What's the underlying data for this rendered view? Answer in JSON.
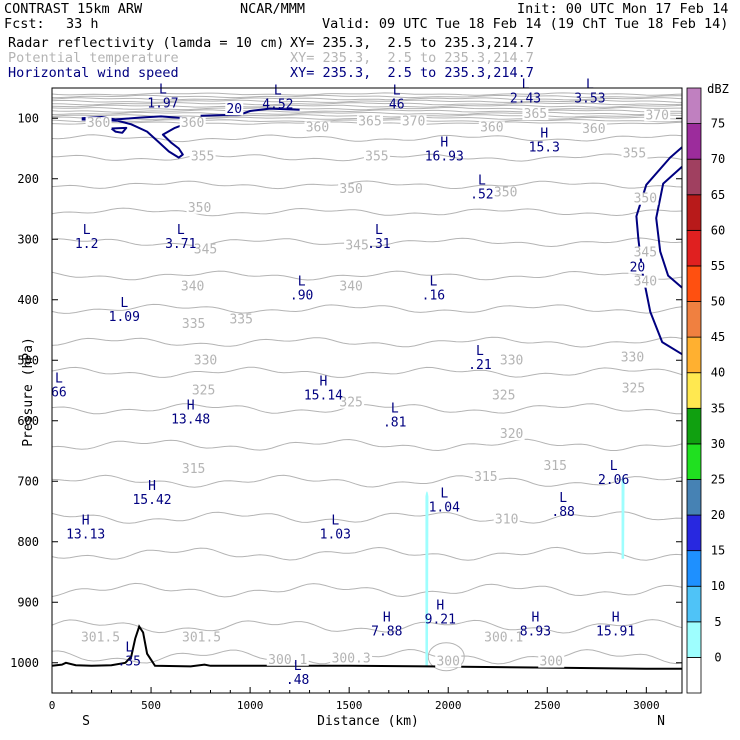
{
  "header": {
    "model": "CONTRAST 15km ARW",
    "center": "NCAR/MMM",
    "init": "Init: 00 UTC Mon 17 Feb 14",
    "fcst_label": "Fcst:",
    "fcst_value": "33 h",
    "valid": "Valid: 09 UTC Tue 18 Feb 14 (19 ChT Tue 18 Feb 14)"
  },
  "fields": [
    {
      "name": "Radar reflectivity (lamda = 10 cm)",
      "xy": "XY= 235.3,  2.5 to 235.3,214.7",
      "color": "#000000"
    },
    {
      "name": "Potential temperature",
      "xy": "XY= 235.3,  2.5 to 235.3,214.7",
      "color": "#b4b4b4"
    },
    {
      "name": "Horizontal wind speed",
      "xy": "XY= 235.3,  2.5 to 235.3,214.7",
      "color": "#000080"
    }
  ],
  "chart_data": {
    "type": "cross-section",
    "xlabel": "Distance (km)",
    "ylabel": "Pressure (hPa)",
    "xlim": [
      0,
      3180
    ],
    "ylim": [
      1050,
      50
    ],
    "x_ticks": [
      0,
      500,
      1000,
      1500,
      2000,
      2500,
      3000
    ],
    "x_tick_labels": [
      "0",
      "500",
      "1000",
      "1500",
      "2000",
      "2500",
      "3000"
    ],
    "y_ticks": [
      100,
      200,
      300,
      400,
      500,
      600,
      700,
      800,
      900,
      1000
    ],
    "y_tick_labels": [
      "100",
      "200",
      "300",
      "400",
      "500",
      "600",
      "700",
      "800",
      "900",
      "1000"
    ],
    "left_end_label": "S",
    "right_end_label": "N",
    "colorbar": {
      "unit": "dBZ",
      "levels": [
        "0",
        "5",
        "10",
        "15",
        "20",
        "25",
        "30",
        "35",
        "40",
        "45",
        "50",
        "55",
        "60",
        "65",
        "70",
        "75"
      ],
      "colors": [
        "#ffffff",
        "#9efefe",
        "#4fc3f7",
        "#1e90ff",
        "#2828e0",
        "#4682b4",
        "#20e020",
        "#10a010",
        "#ffe850",
        "#ffb030",
        "#f08040",
        "#ff5010",
        "#e02020",
        "#b81a1a",
        "#a04060",
        "#9c2c9c",
        "#c080c0"
      ]
    },
    "theta_labels": [
      {
        "x": 235,
        "p": 113,
        "text": "360"
      },
      {
        "x": 710,
        "p": 113,
        "text": "360"
      },
      {
        "x": 1605,
        "p": 110,
        "text": "365"
      },
      {
        "x": 1825,
        "p": 110,
        "text": "370"
      },
      {
        "x": 1340,
        "p": 120,
        "text": "360"
      },
      {
        "x": 2220,
        "p": 120,
        "text": "360"
      },
      {
        "x": 2440,
        "p": 98,
        "text": "365"
      },
      {
        "x": 2735,
        "p": 123,
        "text": "360"
      },
      {
        "x": 3055,
        "p": 100,
        "text": "370"
      },
      {
        "x": 760,
        "p": 168,
        "text": "355"
      },
      {
        "x": 1640,
        "p": 168,
        "text": "355"
      },
      {
        "x": 2940,
        "p": 163,
        "text": "355"
      },
      {
        "x": 1510,
        "p": 222,
        "text": "350"
      },
      {
        "x": 745,
        "p": 253,
        "text": "350"
      },
      {
        "x": 2290,
        "p": 228,
        "text": "350"
      },
      {
        "x": 2995,
        "p": 238,
        "text": "350"
      },
      {
        "x": 775,
        "p": 322,
        "text": "345"
      },
      {
        "x": 1540,
        "p": 315,
        "text": "345"
      },
      {
        "x": 2995,
        "p": 327,
        "text": "345"
      },
      {
        "x": 710,
        "p": 383,
        "text": "340"
      },
      {
        "x": 1510,
        "p": 383,
        "text": "340"
      },
      {
        "x": 2995,
        "p": 375,
        "text": "340"
      },
      {
        "x": 715,
        "p": 445,
        "text": "335"
      },
      {
        "x": 955,
        "p": 438,
        "text": "335"
      },
      {
        "x": 775,
        "p": 505,
        "text": "330"
      },
      {
        "x": 2320,
        "p": 505,
        "text": "330"
      },
      {
        "x": 2930,
        "p": 500,
        "text": "330"
      },
      {
        "x": 765,
        "p": 555,
        "text": "325"
      },
      {
        "x": 1510,
        "p": 575,
        "text": "325"
      },
      {
        "x": 2280,
        "p": 563,
        "text": "325"
      },
      {
        "x": 2935,
        "p": 552,
        "text": "325"
      },
      {
        "x": 2320,
        "p": 627,
        "text": "320"
      },
      {
        "x": 715,
        "p": 685,
        "text": "315"
      },
      {
        "x": 2540,
        "p": 680,
        "text": "315"
      },
      {
        "x": 2190,
        "p": 698,
        "text": "315"
      },
      {
        "x": 2295,
        "p": 768,
        "text": "310"
      },
      {
        "x": 245,
        "p": 963,
        "text": "301.5"
      },
      {
        "x": 755,
        "p": 963,
        "text": "301.5"
      },
      {
        "x": 1190,
        "p": 1000,
        "text": "300.1"
      },
      {
        "x": 1510,
        "p": 998,
        "text": "300.3"
      },
      {
        "x": 2280,
        "p": 963,
        "text": "300.1"
      },
      {
        "x": 2000,
        "p": 1003,
        "text": "300"
      },
      {
        "x": 2520,
        "p": 1003,
        "text": "300"
      }
    ],
    "wind_extrema": [
      {
        "x": 560,
        "p": 62,
        "type": "L",
        "value": "1.97"
      },
      {
        "x": 1140,
        "p": 64,
        "type": "L",
        "value": "4.52"
      },
      {
        "x": 1740,
        "p": 64,
        "type": "L",
        "value": "46"
      },
      {
        "x": 2390,
        "p": 54,
        "type": "L",
        "value": "2.43"
      },
      {
        "x": 2715,
        "p": 54,
        "type": "L",
        "value": "3.53"
      },
      {
        "x": 1980,
        "p": 150,
        "type": "H",
        "value": "16.93"
      },
      {
        "x": 2485,
        "p": 135,
        "type": "H",
        "value": "15.3"
      },
      {
        "x": 2170,
        "p": 213,
        "type": "L",
        "value": ".52"
      },
      {
        "x": 175,
        "p": 295,
        "type": "L",
        "value": "1.2"
      },
      {
        "x": 650,
        "p": 295,
        "type": "L",
        "value": "3.71"
      },
      {
        "x": 1650,
        "p": 295,
        "type": "L",
        "value": ".31"
      },
      {
        "x": 1260,
        "p": 380,
        "type": "L",
        "value": ".90"
      },
      {
        "x": 1925,
        "p": 380,
        "type": "L",
        "value": ".16"
      },
      {
        "x": 365,
        "p": 415,
        "type": "L",
        "value": "1.09"
      },
      {
        "x": 2160,
        "p": 495,
        "type": "L",
        "value": ".21"
      },
      {
        "x": 35,
        "p": 540,
        "type": "L",
        "value": "66"
      },
      {
        "x": 1370,
        "p": 545,
        "type": "H",
        "value": "15.14"
      },
      {
        "x": 700,
        "p": 585,
        "type": "H",
        "value": "13.48"
      },
      {
        "x": 1730,
        "p": 590,
        "type": "L",
        "value": ".81"
      },
      {
        "x": 2835,
        "p": 685,
        "type": "L",
        "value": "2.06"
      },
      {
        "x": 505,
        "p": 718,
        "type": "H",
        "value": "15.42"
      },
      {
        "x": 1980,
        "p": 730,
        "type": "L",
        "value": "1.04"
      },
      {
        "x": 2580,
        "p": 738,
        "type": "L",
        "value": ".88"
      },
      {
        "x": 170,
        "p": 775,
        "type": "H",
        "value": "13.13"
      },
      {
        "x": 1430,
        "p": 775,
        "type": "L",
        "value": "1.03"
      },
      {
        "x": 1960,
        "p": 915,
        "type": "H",
        "value": "9.21"
      },
      {
        "x": 1690,
        "p": 935,
        "type": "H",
        "value": "7.88"
      },
      {
        "x": 2440,
        "p": 935,
        "type": "H",
        "value": "8.93"
      },
      {
        "x": 2845,
        "p": 935,
        "type": "H",
        "value": "15.91"
      },
      {
        "x": 390,
        "p": 985,
        "type": "L",
        "value": ".35"
      },
      {
        "x": 1240,
        "p": 1015,
        "type": "L",
        "value": ".48"
      }
    ],
    "wind_contour_labels": [
      {
        "x": 920,
        "p": 90,
        "text": "20"
      },
      {
        "x": 2955,
        "p": 352,
        "text": "20"
      }
    ],
    "wind_lines": [
      [
        [
          150,
          100
        ],
        [
          250,
          98
        ],
        [
          320,
          102
        ],
        [
          440,
          99
        ],
        [
          550,
          97
        ],
        [
          630,
          99
        ],
        [
          680,
          100
        ],
        [
          700,
          106
        ],
        [
          620,
          116
        ],
        [
          560,
          127
        ],
        [
          600,
          140
        ],
        [
          640,
          150
        ],
        [
          660,
          160
        ],
        [
          640,
          165
        ],
        [
          590,
          155
        ],
        [
          540,
          140
        ],
        [
          480,
          122
        ],
        [
          400,
          110
        ],
        [
          330,
          104
        ],
        [
          260,
          103
        ],
        [
          150,
          102
        ]
      ],
      [
        [
          3180,
          148
        ],
        [
          3120,
          165
        ],
        [
          3000,
          210
        ],
        [
          2950,
          262
        ],
        [
          2960,
          300
        ],
        [
          2980,
          355
        ],
        [
          3020,
          420
        ],
        [
          3080,
          470
        ],
        [
          3180,
          490
        ]
      ],
      [
        [
          3180,
          180
        ],
        [
          3085,
          208
        ],
        [
          3050,
          265
        ],
        [
          3070,
          320
        ],
        [
          3110,
          360
        ],
        [
          3180,
          380
        ]
      ],
      [
        [
          300,
          117
        ],
        [
          375,
          116
        ],
        [
          355,
          124
        ],
        [
          320,
          122
        ],
        [
          300,
          117
        ]
      ],
      [
        [
          750,
          96
        ],
        [
          950,
          94
        ],
        [
          1000,
          88
        ],
        [
          1100,
          84
        ],
        [
          1250,
          86
        ]
      ]
    ],
    "terrain": [
      [
        0,
        1005
      ],
      [
        50,
        1003
      ],
      [
        70,
        1000
      ],
      [
        120,
        1004
      ],
      [
        200,
        1005
      ],
      [
        300,
        1004
      ],
      [
        370,
        1000
      ],
      [
        400,
        990
      ],
      [
        420,
        960
      ],
      [
        440,
        940
      ],
      [
        460,
        950
      ],
      [
        480,
        985
      ],
      [
        520,
        1005
      ],
      [
        700,
        1006
      ],
      [
        770,
        1003
      ],
      [
        800,
        1005
      ],
      [
        1000,
        1005
      ],
      [
        1500,
        1005
      ],
      [
        1900,
        1006
      ],
      [
        2500,
        1008
      ],
      [
        3000,
        1010
      ],
      [
        3180,
        1010
      ]
    ],
    "reflectivity_cells": [
      {
        "x0": 1885,
        "x1": 1900,
        "p_top": 715,
        "p_bottom": 1005,
        "color": "#9efefe"
      },
      {
        "x0": 2875,
        "x1": 2890,
        "p_top": 690,
        "p_bottom": 828,
        "color": "#9efefe"
      }
    ]
  }
}
